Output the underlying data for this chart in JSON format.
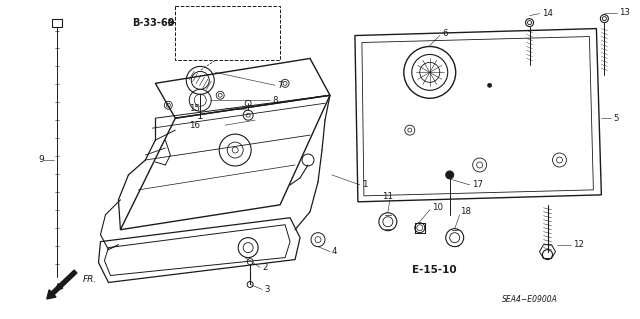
{
  "bg_color": "#ffffff",
  "line_color": "#1a1a1a",
  "fig_width": 6.4,
  "fig_height": 3.19,
  "dpi": 100,
  "diagram_code": "SEA4−E0900A",
  "ref_b": "B-33-60",
  "ref_e": "E-15-10",
  "arrow_fr_label": "FR."
}
